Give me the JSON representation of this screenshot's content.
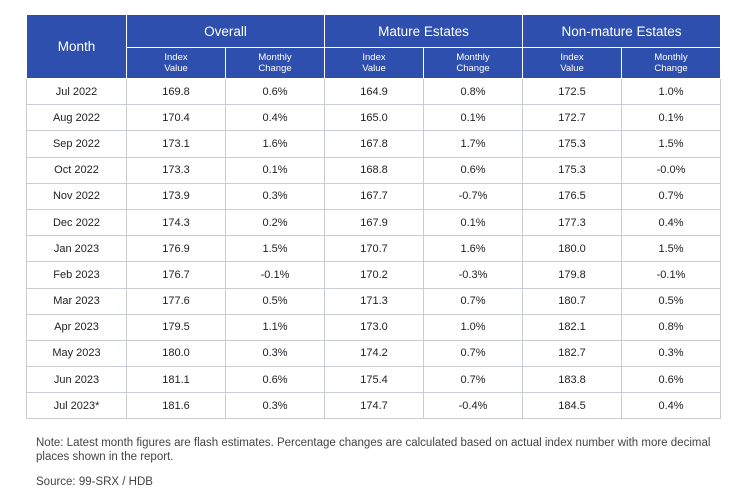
{
  "chart_data": {
    "type": "table",
    "header": {
      "month": "Month",
      "groups": [
        "Overall",
        "Mature Estates",
        "Non-mature Estates"
      ],
      "index_label": "Index\nValue",
      "change_label": "Monthly\nChange"
    },
    "rows": [
      {
        "month": "Jul 2022",
        "cells": [
          "169.8",
          "0.6%",
          "164.9",
          "0.8%",
          "172.5",
          "1.0%"
        ]
      },
      {
        "month": "Aug 2022",
        "cells": [
          "170.4",
          "0.4%",
          "165.0",
          "0.1%",
          "172.7",
          "0.1%"
        ]
      },
      {
        "month": "Sep 2022",
        "cells": [
          "173.1",
          "1.6%",
          "167.8",
          "1.7%",
          "175.3",
          "1.5%"
        ]
      },
      {
        "month": "Oct 2022",
        "cells": [
          "173.3",
          "0.1%",
          "168.8",
          "0.6%",
          "175.3",
          "-0.0%"
        ]
      },
      {
        "month": "Nov 2022",
        "cells": [
          "173.9",
          "0.3%",
          "167.7",
          "-0.7%",
          "176.5",
          "0.7%"
        ]
      },
      {
        "month": "Dec 2022",
        "cells": [
          "174.3",
          "0.2%",
          "167.9",
          "0.1%",
          "177.3",
          "0.4%"
        ]
      },
      {
        "month": "Jan 2023",
        "cells": [
          "176.9",
          "1.5%",
          "170.7",
          "1.6%",
          "180.0",
          "1.5%"
        ]
      },
      {
        "month": "Feb 2023",
        "cells": [
          "176.7",
          "-0.1%",
          "170.2",
          "-0.3%",
          "179.8",
          "-0.1%"
        ]
      },
      {
        "month": "Mar 2023",
        "cells": [
          "177.6",
          "0.5%",
          "171.3",
          "0.7%",
          "180.7",
          "0.5%"
        ]
      },
      {
        "month": "Apr 2023",
        "cells": [
          "179.5",
          "1.1%",
          "173.0",
          "1.0%",
          "182.1",
          "0.8%"
        ]
      },
      {
        "month": "May 2023",
        "cells": [
          "180.0",
          "0.3%",
          "174.2",
          "0.7%",
          "182.7",
          "0.3%"
        ]
      },
      {
        "month": "Jun 2023",
        "cells": [
          "181.1",
          "0.6%",
          "175.4",
          "0.7%",
          "183.8",
          "0.6%"
        ]
      },
      {
        "month": "Jul 2023*",
        "cells": [
          "181.6",
          "0.3%",
          "174.7",
          "-0.4%",
          "184.5",
          "0.4%"
        ]
      }
    ]
  },
  "note": "Note: Latest month figures are flash estimates. Percentage changes are calculated based on actual index number with more decimal places shown in the report.",
  "source": "Source: 99-SRX / HDB",
  "colors": {
    "header_bg": "#2f4fae",
    "header_text": "#ffffff",
    "border": "#c9ccd2"
  }
}
